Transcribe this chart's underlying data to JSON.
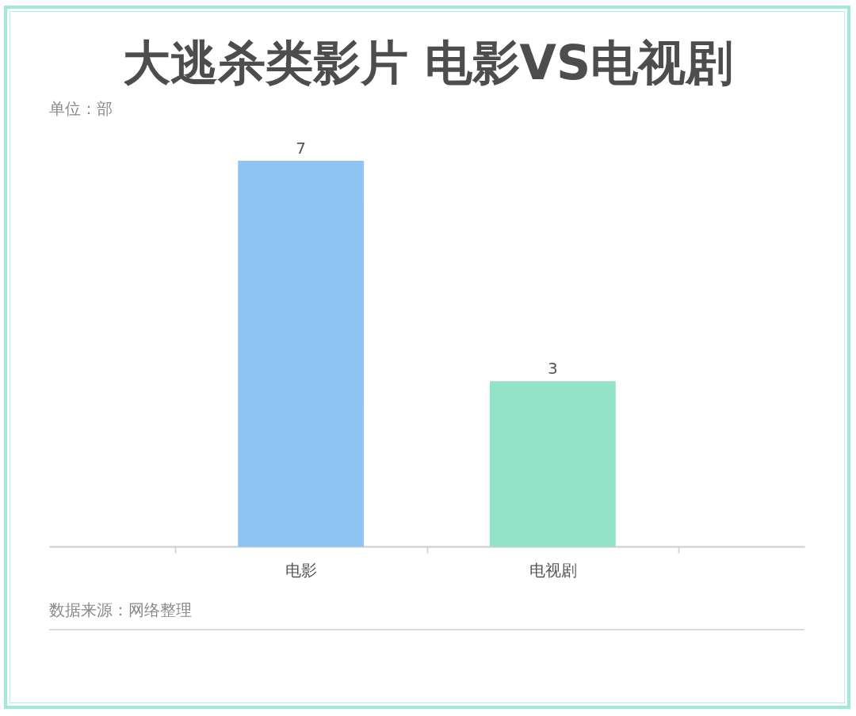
{
  "chart_data": {
    "type": "bar",
    "title": "大逃杀类影片 电影VS电视剧",
    "categories": [
      "电影",
      "电视剧"
    ],
    "values": [
      7,
      3
    ],
    "colors": [
      "#8ec4f4",
      "#92e3c8"
    ],
    "data_labels": true,
    "annotations": [
      "单位：部",
      "数据来源：网络整理"
    ]
  }
}
